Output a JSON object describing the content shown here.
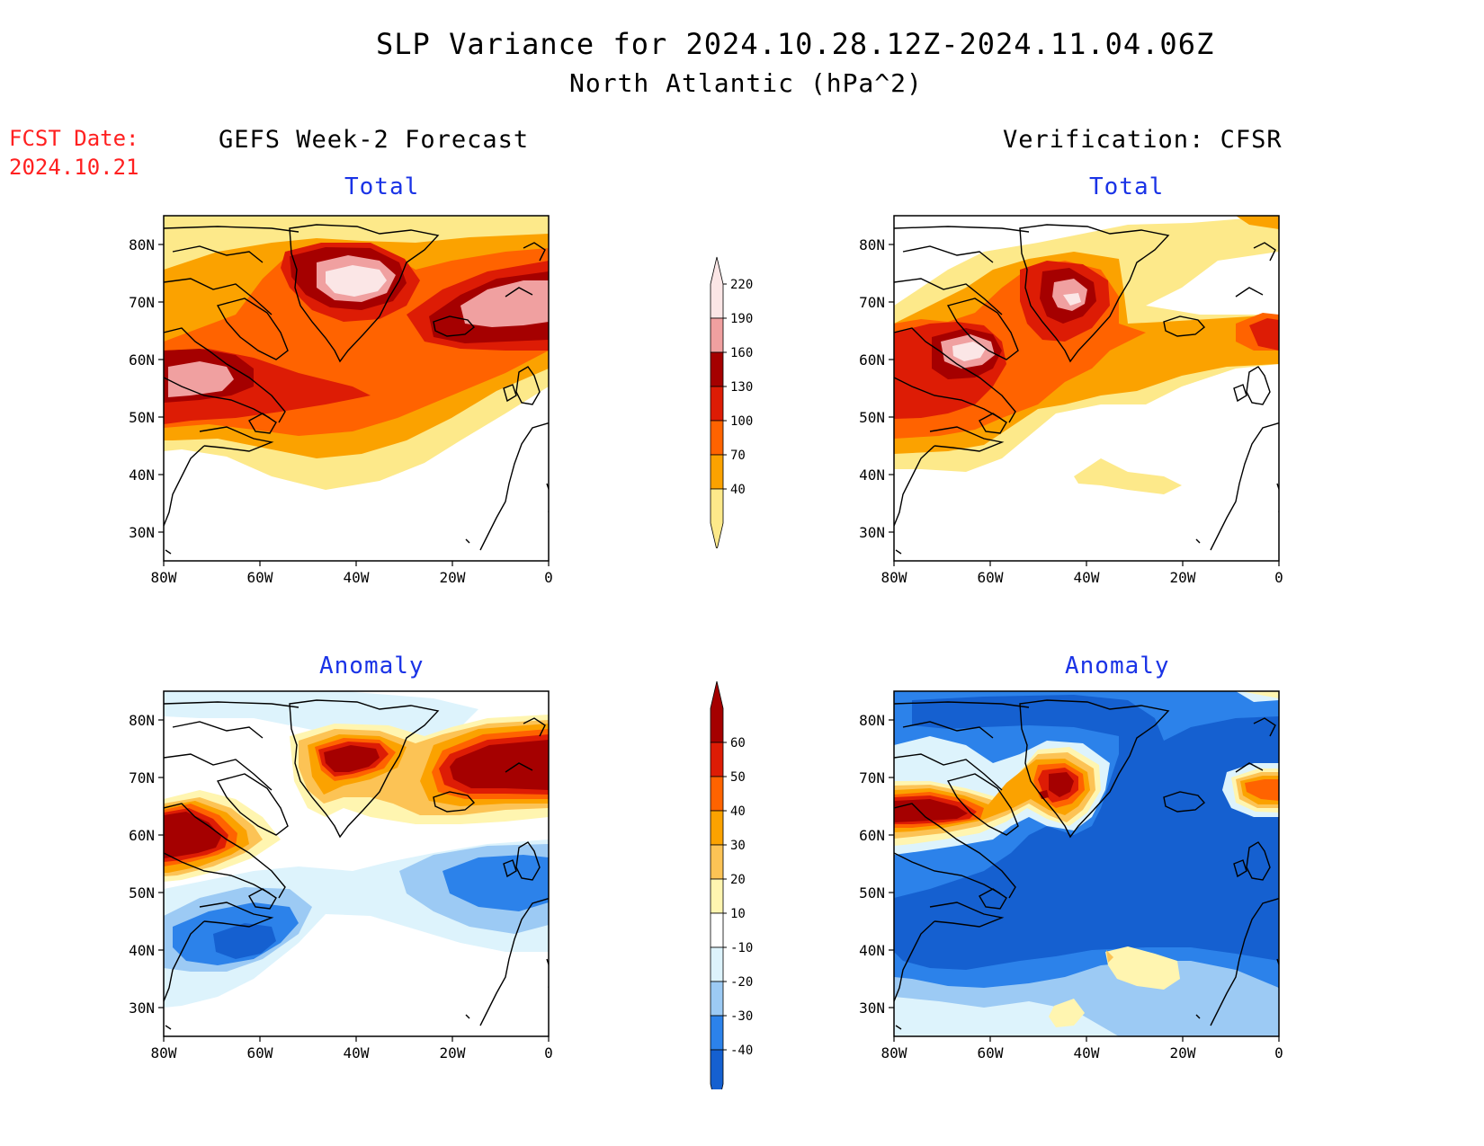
{
  "header": {
    "title": "SLP Variance for 2024.10.28.12Z-2024.11.04.06Z",
    "subtitle": "North Atlantic (hPa^2)",
    "fcst_line1": "FCST Date:",
    "fcst_line2": "2024.10.21"
  },
  "columns": {
    "left": "GEFS Week-2 Forecast",
    "right": "Verification: CFSR"
  },
  "panels": {
    "gefs_total": "Total",
    "cfsr_total": "Total",
    "gefs_anom": "Anomaly",
    "cfsr_anom": "Anomaly"
  },
  "axes": {
    "lat_ticks": [
      "30N",
      "40N",
      "50N",
      "60N",
      "70N",
      "80N"
    ],
    "lon_ticks": [
      "80W",
      "60W",
      "40W",
      "20W",
      "0"
    ]
  },
  "colorbar_total": {
    "levels": [
      "40",
      "70",
      "100",
      "130",
      "160",
      "190",
      "220"
    ],
    "colors": [
      "#fde98a",
      "#fba200",
      "#ff6300",
      "#dd1c05",
      "#a50000",
      "#f0a0a0",
      "#fbe6e6"
    ]
  },
  "colorbar_anom": {
    "levels": [
      "-40",
      "-30",
      "-20",
      "-10",
      "10",
      "20",
      "30",
      "40",
      "50",
      "60"
    ],
    "colors": [
      "#1560d0",
      "#2c82ea",
      "#9ccaf4",
      "#ddf3fc",
      "#ffffff",
      "#fff5b0",
      "#fcc355",
      "#fba200",
      "#ff6300",
      "#dd1c05",
      "#a50000"
    ]
  }
}
